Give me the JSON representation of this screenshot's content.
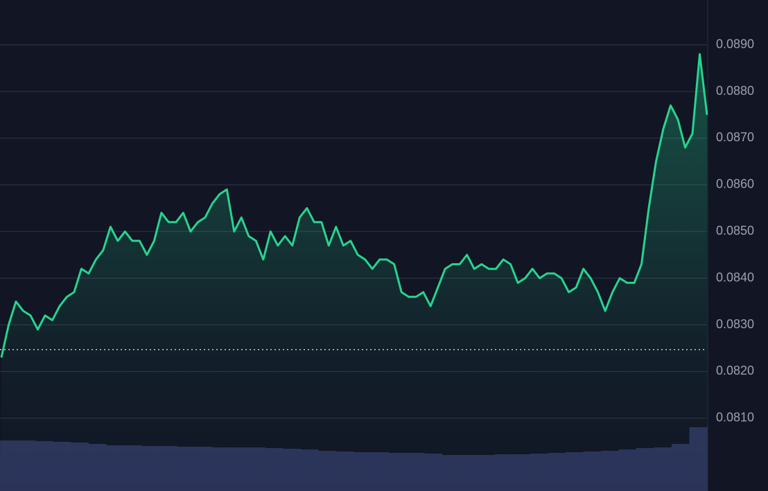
{
  "chart_data": {
    "type": "line",
    "series": [
      {
        "color": "#27d48e",
        "values": [
          0.0823,
          0.083,
          0.0835,
          0.0833,
          0.0832,
          0.0829,
          0.0832,
          0.0831,
          0.0834,
          0.0836,
          0.0837,
          0.0842,
          0.0841,
          0.0844,
          0.0846,
          0.0851,
          0.0848,
          0.085,
          0.0848,
          0.0848,
          0.0845,
          0.0848,
          0.0854,
          0.0852,
          0.0852,
          0.0854,
          0.085,
          0.0852,
          0.0853,
          0.0856,
          0.0858,
          0.0859,
          0.085,
          0.0853,
          0.0849,
          0.0848,
          0.0844,
          0.085,
          0.0847,
          0.0849,
          0.0847,
          0.0853,
          0.0855,
          0.0852,
          0.0852,
          0.0847,
          0.0851,
          0.0847,
          0.0848,
          0.0845,
          0.0844,
          0.0842,
          0.0844,
          0.0844,
          0.0843,
          0.0837,
          0.0836,
          0.0836,
          0.0837,
          0.0834,
          0.0838,
          0.0842,
          0.0843,
          0.0843,
          0.0845,
          0.0842,
          0.0843,
          0.0842,
          0.0842,
          0.0844,
          0.0843,
          0.0839,
          0.084,
          0.0842,
          0.084,
          0.0841,
          0.0841,
          0.084,
          0.0837,
          0.0838,
          0.0842,
          0.084,
          0.0837,
          0.0833,
          0.0837,
          0.084,
          0.0839,
          0.0839,
          0.0843,
          0.0855,
          0.0865,
          0.0872,
          0.0877,
          0.0874,
          0.0868,
          0.0871,
          0.0888,
          0.0875
        ]
      }
    ],
    "reference_line": 0.08247,
    "volume": {
      "color": "#2b3359",
      "values": [
        73,
        73,
        72,
        71,
        70,
        68,
        66,
        66,
        65,
        65,
        64,
        64,
        63,
        63,
        63,
        62,
        61,
        60,
        58,
        57,
        56,
        56,
        55,
        55,
        54,
        52,
        52,
        52,
        53,
        53,
        54,
        55,
        56,
        57,
        58,
        60,
        62,
        63,
        68,
        92
      ],
      "lim": [
        0,
        100
      ]
    },
    "ylim": [
      0.07944,
      0.08996
    ],
    "yticks": [
      {
        "value": 0.081,
        "label": "0.0810"
      },
      {
        "value": 0.082,
        "label": "0.0820"
      },
      {
        "value": 0.083,
        "label": "0.0830"
      },
      {
        "value": 0.084,
        "label": "0.0840"
      },
      {
        "value": 0.085,
        "label": "0.0850"
      },
      {
        "value": 0.086,
        "label": "0.0860"
      },
      {
        "value": 0.087,
        "label": "0.0870"
      },
      {
        "value": 0.088,
        "label": "0.0880"
      },
      {
        "value": 0.089,
        "label": "0.0890"
      }
    ],
    "grid": true
  }
}
